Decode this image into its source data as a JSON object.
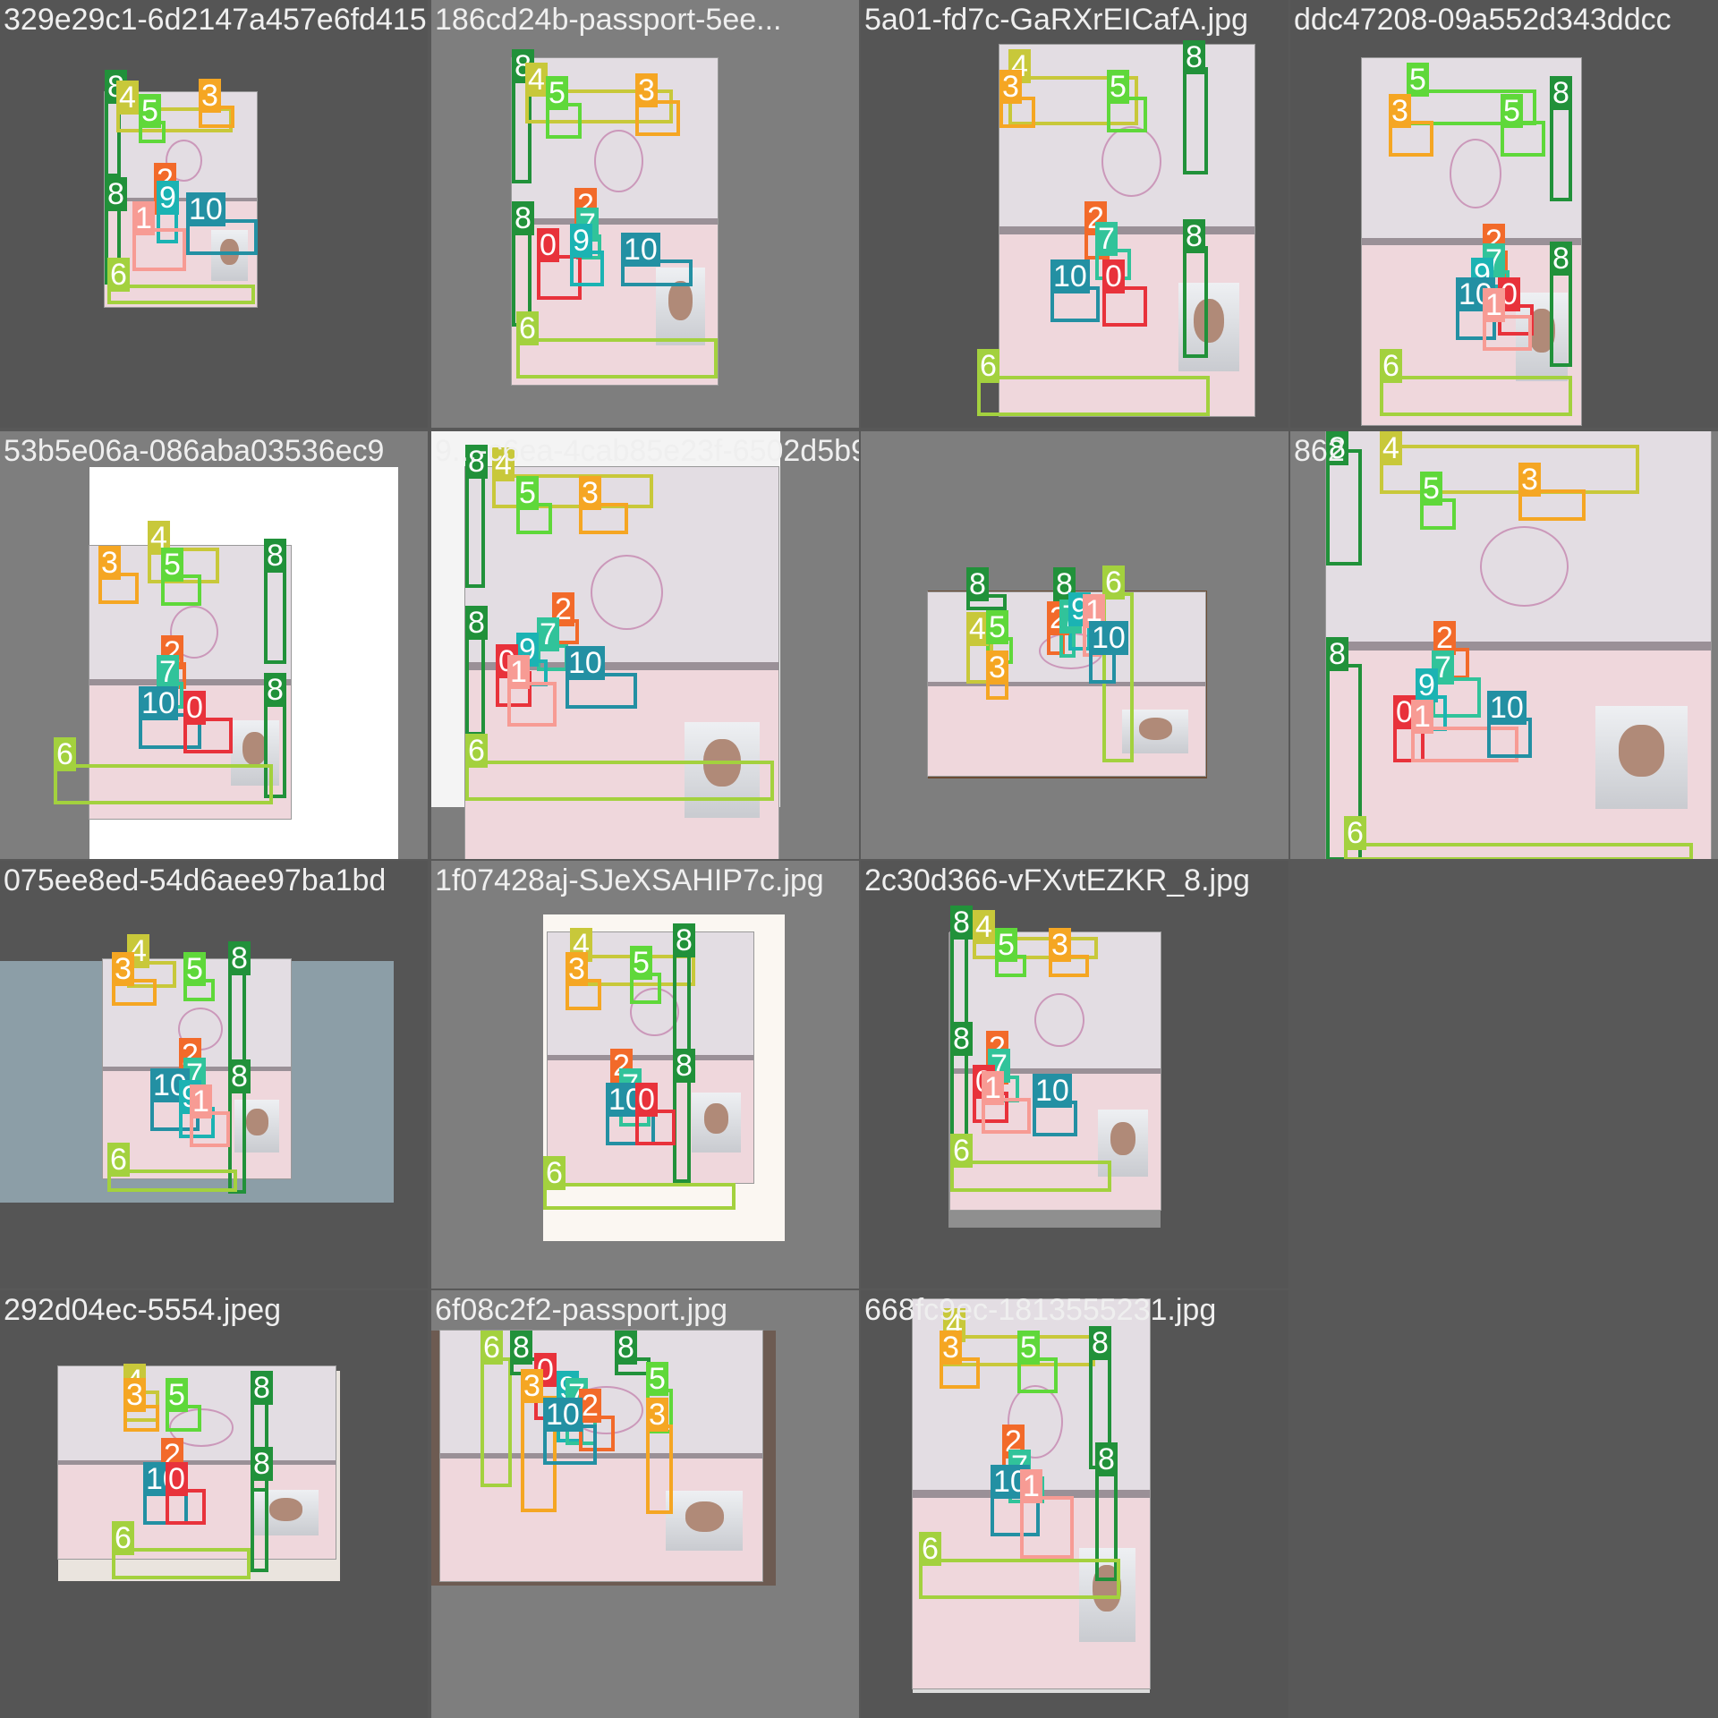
{
  "classes": {
    "0": "#e8323b",
    "1": "#f79b94",
    "2": "#f26a2a",
    "3": "#f5a623",
    "4": "#c8c83a",
    "5": "#5fd83a",
    "6": "#a3d13e",
    "7": "#31c39a",
    "8": "#21913a",
    "9": "#1bb3b3",
    "10": "#2390a3"
  },
  "tiles": [
    {
      "filename": "329e29c1-6d2147a457e6fd4153d2913-fposter367-0-41233f3016476348052ElCafA.jpg",
      "labels": [
        "8",
        "4",
        "5",
        "3",
        "8",
        "2",
        "9",
        "1",
        "10",
        "6"
      ]
    },
    {
      "filename": "186cd24b-passport-5ee...",
      "labels": [
        "8",
        "4",
        "5",
        "3",
        "8",
        "2",
        "7",
        "0",
        "9",
        "10",
        "6"
      ]
    },
    {
      "filename": "5a01-fd7c-GaRXrEICafA.jpg",
      "labels": [
        "4",
        "3",
        "5",
        "8",
        "8",
        "2",
        "7",
        "10",
        "0",
        "6"
      ]
    },
    {
      "filename": "ddc47208-09a552d343ddcc",
      "labels": [
        "5",
        "3",
        "5",
        "8",
        "8",
        "2",
        "7",
        "9",
        "10",
        "0",
        "1",
        "6"
      ]
    },
    {
      "filename": "53b5e06a-086aba03536ec9",
      "labels": [
        "4",
        "3",
        "5",
        "8",
        "8",
        "2",
        "7",
        "10",
        "0",
        "6"
      ]
    },
    {
      "filename": "9...-c6ea-4cab85e23f-6502d5b9.jpg",
      "labels": [
        "8",
        "4",
        "5",
        "3",
        "8",
        "2",
        "7",
        "9",
        "0",
        "1",
        "10",
        "6"
      ]
    },
    {
      "filename": "",
      "labels": [
        "8",
        "8",
        "6",
        "4",
        "5",
        "3",
        "2",
        "7",
        "9",
        "1",
        "10"
      ]
    },
    {
      "filename": "862",
      "labels": [
        "8",
        "4",
        "5",
        "3",
        "8",
        "2",
        "7",
        "9",
        "0",
        "1",
        "10",
        "6"
      ]
    },
    {
      "filename": "075ee8ed-54d6aee97ba1bd",
      "labels": [
        "4",
        "3",
        "5",
        "8",
        "8",
        "2",
        "7",
        "10",
        "9",
        "1",
        "6"
      ]
    },
    {
      "filename": "1f07428aj-SJeXSAHIP7c.jpg",
      "labels": [
        "4",
        "3",
        "5",
        "8",
        "8",
        "2",
        "7",
        "10",
        "0",
        "6"
      ]
    },
    {
      "filename": "2c30d366-vFXvtEZKR_8.jpg",
      "labels": [
        "8",
        "4",
        "5",
        "3",
        "8",
        "2",
        "7",
        "0",
        "1",
        "10",
        "6"
      ]
    },
    {
      "filename": "292d04ec-5554.jpeg",
      "labels": [
        "4",
        "3",
        "5",
        "8",
        "8",
        "2",
        "10",
        "0",
        "6"
      ]
    },
    {
      "filename": "6f08c2f2-passport.jpg",
      "labels": [
        "6",
        "8",
        "0",
        "3",
        "9",
        "7",
        "2",
        "10",
        "8",
        "5",
        "3"
      ]
    },
    {
      "filename": "668fc9ec-1813555231.jpg",
      "labels": [
        "4",
        "3",
        "5",
        "8",
        "8",
        "2",
        "7",
        "10",
        "1",
        "6"
      ]
    }
  ]
}
